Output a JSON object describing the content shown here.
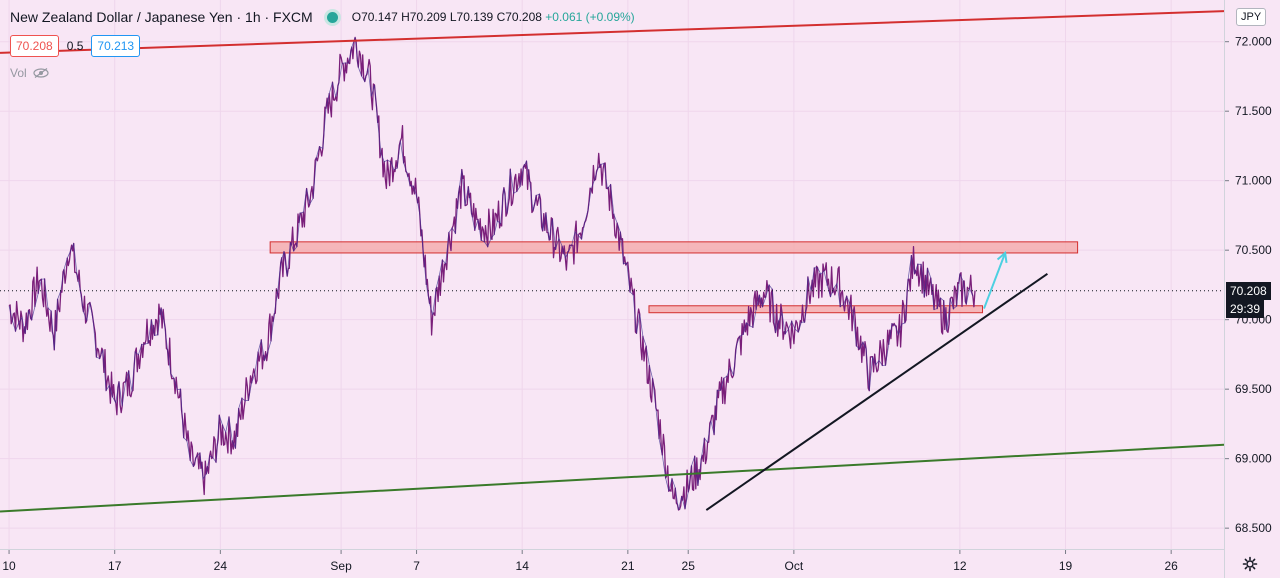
{
  "header": {
    "symbol": "New Zealand Dollar / Japanese Yen · 1h · FXCM",
    "ohlc": {
      "o_label": "O",
      "o": "70.147",
      "h_label": "H",
      "h": "70.209",
      "l_label": "L",
      "l": "70.139",
      "c_label": "C",
      "c": "70.208",
      "change": "+0.061 (+0.09%)"
    },
    "bid": "70.208",
    "spread": "0.5",
    "ask": "70.213",
    "vol_label": "Vol"
  },
  "price_axis": {
    "currency": "JPY",
    "last_price": "70.208",
    "countdown": "29:39"
  },
  "colors": {
    "background": "#f8e6f5",
    "candle": "#7a1f7a",
    "candle_alt": "#3a2b8f",
    "resistance_channel": "#d32f2f",
    "support_channel": "#3a7a2a",
    "trendline": "#131722",
    "zone_fill": "#f4a6a6",
    "zone_border": "#d32f2f",
    "arrow": "#4dd0e1"
  },
  "chart_data": {
    "type": "line",
    "title": "",
    "xlabel": "",
    "ylabel": "",
    "ylim": [
      68.35,
      72.3
    ],
    "y_ticks": [
      "72.000",
      "71.500",
      "71.000",
      "70.500",
      "70.000",
      "69.500",
      "69.000",
      "68.500"
    ],
    "x_tick_labels": [
      "10",
      "17",
      "24",
      "Sep",
      "7",
      "14",
      "21",
      "25",
      "Oct",
      "12",
      "19",
      "26"
    ],
    "x_tick_days": [
      0,
      7,
      14,
      22,
      27,
      34,
      41,
      45,
      52,
      63,
      70,
      77
    ],
    "x_range_days": [
      -0.6,
      80.5
    ],
    "series": [
      {
        "days": [
          0,
          1,
          2,
          3,
          4,
          5,
          6,
          7,
          8,
          9,
          10,
          11,
          12,
          13,
          14,
          15,
          16,
          17,
          18,
          19,
          20,
          21,
          22,
          23,
          24,
          25,
          26,
          27,
          28,
          29,
          30,
          31,
          32,
          33,
          34,
          35,
          36,
          37,
          38,
          39,
          40,
          41,
          42,
          43,
          44,
          45,
          46,
          47,
          48,
          49,
          50,
          51,
          52,
          53,
          54,
          55,
          56,
          57,
          58,
          59,
          60,
          61,
          62,
          63,
          64
        ],
        "values": [
          70.1,
          69.95,
          70.3,
          69.9,
          70.55,
          70.1,
          69.8,
          69.4,
          69.55,
          69.9,
          70.05,
          69.6,
          69.0,
          68.85,
          69.2,
          69.15,
          69.6,
          69.8,
          70.3,
          70.6,
          70.9,
          71.45,
          71.8,
          72.0,
          71.7,
          71.0,
          71.3,
          70.9,
          70.0,
          70.5,
          70.95,
          70.7,
          70.65,
          70.9,
          71.1,
          70.8,
          70.6,
          70.4,
          70.7,
          71.2,
          70.8,
          70.3,
          69.8,
          69.3,
          68.7,
          68.8,
          69.0,
          69.4,
          69.7,
          70.0,
          70.2,
          70.0,
          69.9,
          70.2,
          70.3,
          70.25,
          70.0,
          69.6,
          69.8,
          69.9,
          70.45,
          70.2,
          70.0,
          70.21,
          70.21
        ]
      }
    ],
    "annotations": [
      {
        "kind": "horizontal-zone",
        "from_day": 17.3,
        "to_day": 70.8,
        "low": 70.48,
        "high": 70.56
      },
      {
        "kind": "horizontal-zone",
        "from_day": 42.4,
        "to_day": 64.5,
        "low": 70.05,
        "high": 70.1
      },
      {
        "kind": "trendline",
        "color": "resistance_channel",
        "from": [
          -0.6,
          71.92
        ],
        "to": [
          80.5,
          72.22
        ]
      },
      {
        "kind": "trendline",
        "color": "support_channel",
        "from": [
          -0.6,
          68.62
        ],
        "to": [
          80.5,
          69.1
        ]
      },
      {
        "kind": "trendline",
        "color": "trendline",
        "from": [
          46.2,
          68.63
        ],
        "to": [
          68.8,
          70.33
        ]
      },
      {
        "kind": "arrow",
        "from": [
          64.6,
          70.08
        ],
        "to": [
          66.0,
          70.48
        ]
      }
    ]
  }
}
